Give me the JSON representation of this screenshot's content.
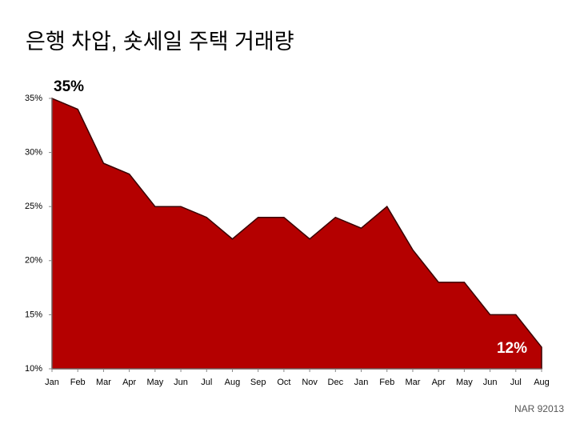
{
  "chart_data": {
    "type": "area",
    "title": "은행 차압, 숏세일 주택 거래량",
    "source": "NAR 92013",
    "categories": [
      "Jan",
      "Feb",
      "Mar",
      "Apr",
      "May",
      "Jun",
      "Jul",
      "Aug",
      "Sep",
      "Oct",
      "Nov",
      "Dec",
      "Jan",
      "Feb",
      "Mar",
      "Apr",
      "May",
      "Jun",
      "Jul",
      "Aug"
    ],
    "values": [
      35,
      34,
      29,
      28,
      25,
      25,
      24,
      22,
      24,
      24,
      22,
      24,
      23,
      25,
      21,
      18,
      18,
      15,
      15,
      12
    ],
    "value_labels": [
      "35%",
      null,
      null,
      null,
      null,
      null,
      null,
      null,
      null,
      null,
      null,
      null,
      null,
      null,
      null,
      null,
      null,
      null,
      null,
      "12%"
    ],
    "color": "#b40000",
    "ylim": [
      10,
      35
    ],
    "yticks": [
      {
        "value": 10,
        "label": "10%"
      },
      {
        "value": 15,
        "label": "15%"
      },
      {
        "value": 20,
        "label": "20%"
      },
      {
        "value": 25,
        "label": "25%"
      },
      {
        "value": 30,
        "label": "30%"
      },
      {
        "value": 35,
        "label": "35%"
      }
    ],
    "grid": false
  }
}
